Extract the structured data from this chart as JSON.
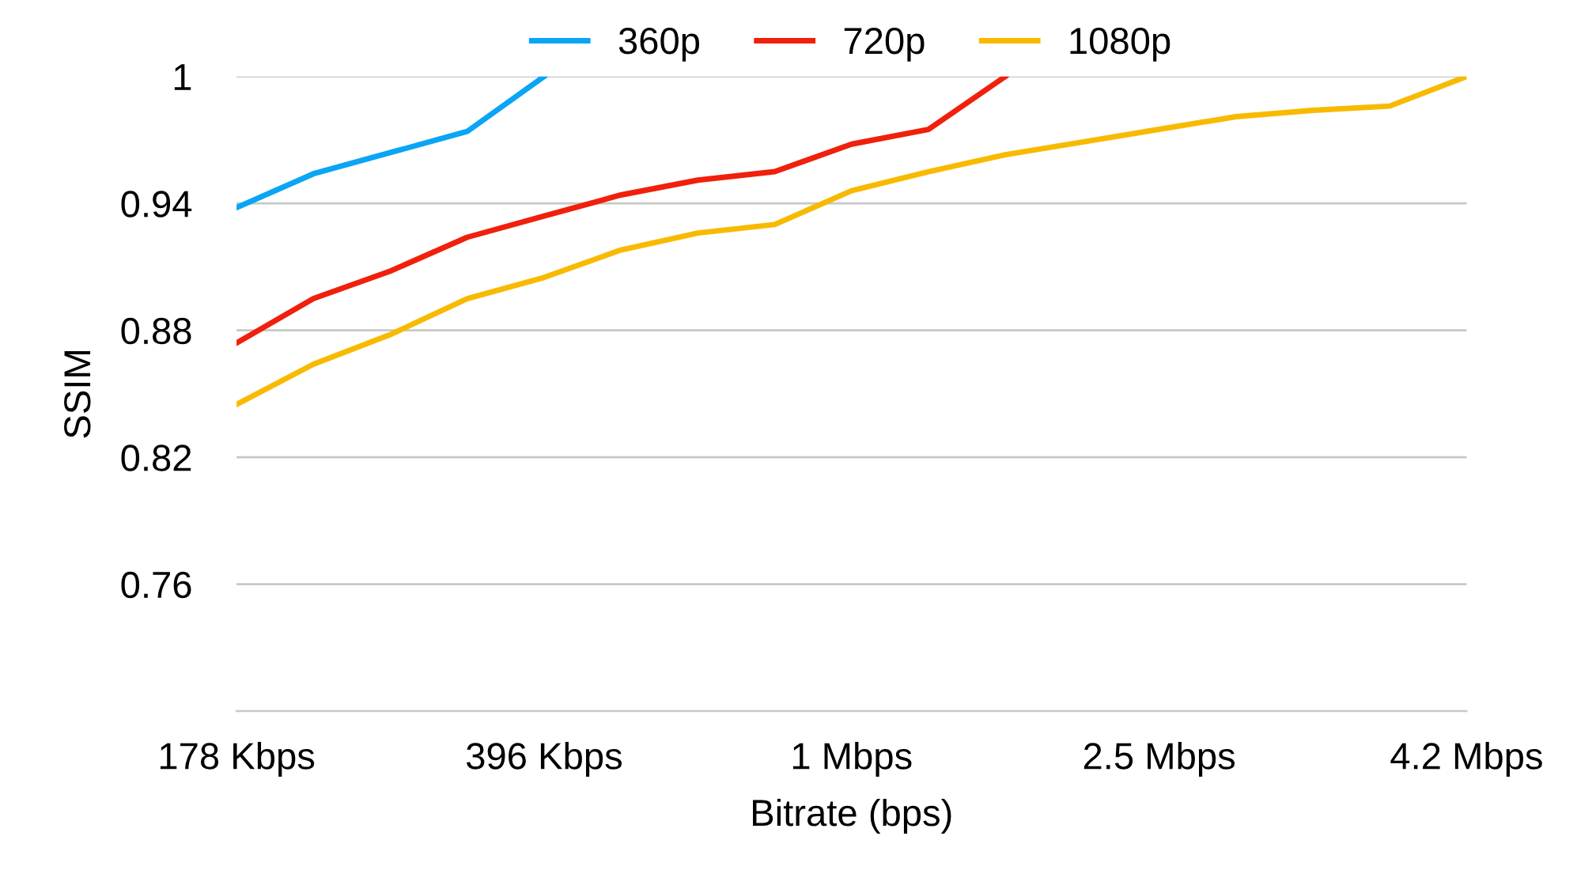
{
  "chart_data": {
    "type": "line",
    "xlabel": "Bitrate (bps)",
    "ylabel": "SSIM",
    "categories": [
      "178 Kbps",
      null,
      null,
      null,
      "396 Kbps",
      null,
      null,
      null,
      "1 Mbps",
      null,
      null,
      null,
      "2.5 Mbps",
      null,
      null,
      null,
      "4.2 Mbps"
    ],
    "series": [
      {
        "name": "360p",
        "color": "#0aa5f5",
        "values": [
          0.938,
          0.954,
          0.964,
          0.974,
          1.0,
          null,
          null,
          null,
          null,
          null,
          null,
          null,
          null,
          null,
          null,
          null,
          null
        ]
      },
      {
        "name": "720p",
        "color": "#f0200c",
        "values": [
          0.874,
          0.895,
          0.908,
          0.924,
          0.934,
          0.944,
          0.951,
          0.955,
          0.968,
          0.975,
          1.0,
          null,
          null,
          null,
          null,
          null,
          null
        ]
      },
      {
        "name": "1080p",
        "color": "#f8ba00",
        "values": [
          0.845,
          0.864,
          0.878,
          0.895,
          0.905,
          0.918,
          0.926,
          0.93,
          0.946,
          0.955,
          0.963,
          0.969,
          0.975,
          0.981,
          0.984,
          0.986,
          1.0
        ]
      }
    ],
    "ylim": [
      0.7,
      1.0
    ],
    "yticks": [
      {
        "value": 0.7,
        "label": null
      },
      0.76,
      0.82,
      0.88,
      0.94,
      1
    ],
    "grid": "y",
    "legend": "top",
    "marker": "none",
    "line_style": "solid"
  }
}
